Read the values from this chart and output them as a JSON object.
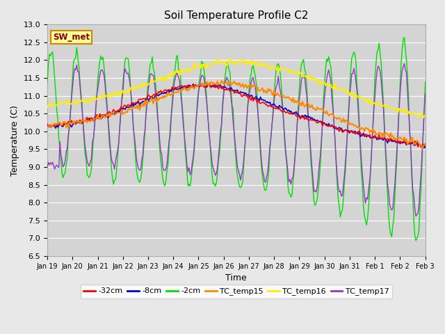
{
  "title": "Soil Temperature Profile C2",
  "xlabel": "Time",
  "ylabel": "Temperature (C)",
  "ylim": [
    6.5,
    13.0
  ],
  "yticks": [
    6.5,
    7.0,
    7.5,
    8.0,
    8.5,
    9.0,
    9.5,
    10.0,
    10.5,
    11.0,
    11.5,
    12.0,
    12.5,
    13.0
  ],
  "xtick_labels": [
    "Jan 19",
    "Jan 20",
    "Jan 21",
    "Jan 22",
    "Jan 23",
    "Jan 24",
    "Jan 25",
    "Jan 26",
    "Jan 27",
    "Jan 28",
    "Jan 29",
    "Jan 30",
    "Jan 31",
    "Feb 1",
    "Feb 2",
    "Feb 3"
  ],
  "line_colors": {
    "m32cm": "#ff0000",
    "m8cm": "#0000cc",
    "m2cm": "#00dd00",
    "TC_temp15": "#ff8800",
    "TC_temp16": "#ffee00",
    "TC_temp17": "#9933cc"
  },
  "legend_labels": [
    "-32cm",
    "-8cm",
    "-2cm",
    "TC_temp15",
    "TC_temp16",
    "TC_temp17"
  ],
  "sw_met_label": "SW_met",
  "bg_color": "#e8e8e8",
  "plot_bg_color": "#d4d4d4"
}
